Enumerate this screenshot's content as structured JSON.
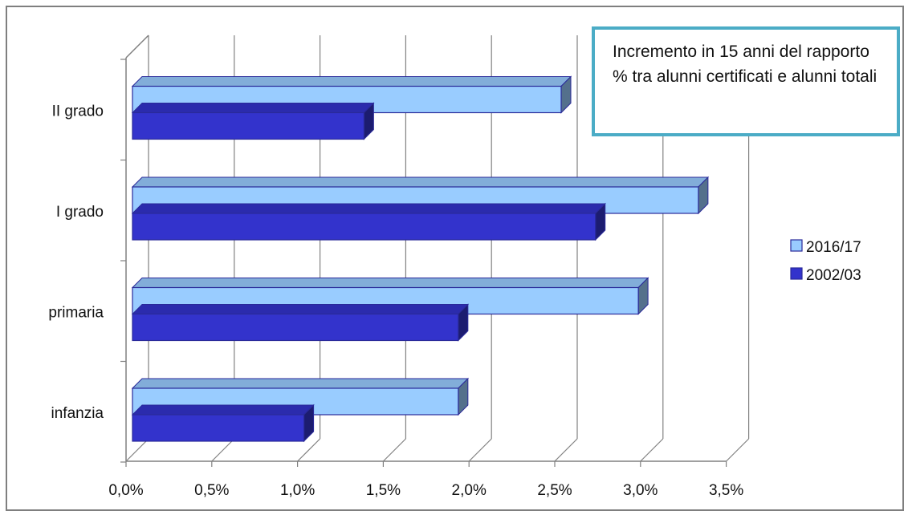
{
  "chart_data": {
    "type": "bar",
    "orientation": "horizontal",
    "title": "Incremento in 15 anni del rapporto % tra alunni certificati e alunni totali",
    "categories": [
      "infanzia",
      "primaria",
      "I grado",
      "II grado"
    ],
    "series": [
      {
        "name": "2016/17",
        "values": [
          1.9,
          2.95,
          3.3,
          2.5
        ],
        "color": "#99ccff"
      },
      {
        "name": "2002/03",
        "values": [
          1.0,
          1.9,
          2.7,
          1.35
        ],
        "color": "#3333cc"
      }
    ],
    "xlim": [
      0,
      3.5
    ],
    "x_ticks": [
      "0,0%",
      "0,5%",
      "1,0%",
      "1,5%",
      "2,0%",
      "2,5%",
      "3,0%",
      "3,5%"
    ],
    "grid": true,
    "legend": "right",
    "style": "3d-clustered-bar"
  }
}
